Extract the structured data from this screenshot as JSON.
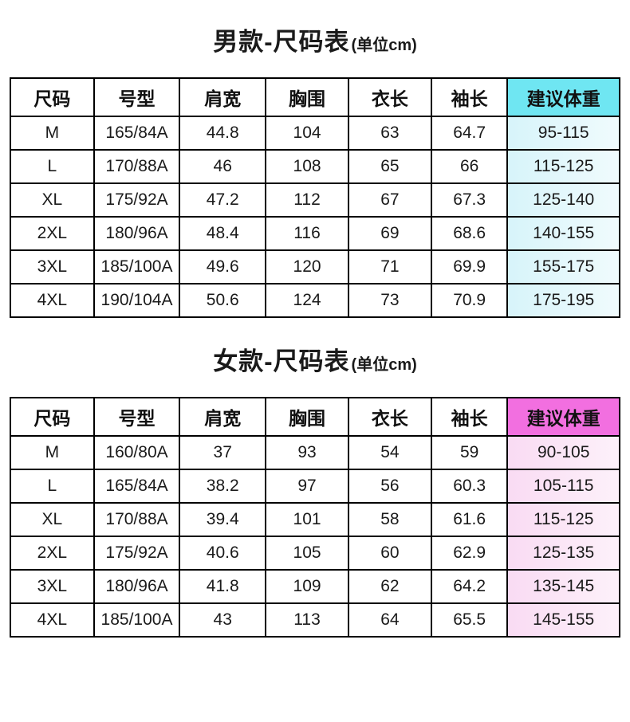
{
  "page": {
    "background": "#ffffff"
  },
  "tables": [
    {
      "id": "mens",
      "title": "男款-尺码表",
      "title_suffix": "(单位cm)",
      "headers": [
        "尺码",
        "号型",
        "肩宽",
        "胸围",
        "衣长",
        "袖长",
        "建议体重"
      ],
      "accent_color": "#6FE6F2",
      "tint_color": "#D7F4FA",
      "tint_light_color": "#F0FBFD",
      "rows": [
        [
          "M",
          "165/84A",
          "44.8",
          "104",
          "63",
          "64.7",
          "95-115"
        ],
        [
          "L",
          "170/88A",
          "46",
          "108",
          "65",
          "66",
          "115-125"
        ],
        [
          "XL",
          "175/92A",
          "47.2",
          "112",
          "67",
          "67.3",
          "125-140"
        ],
        [
          "2XL",
          "180/96A",
          "48.4",
          "116",
          "69",
          "68.6",
          "140-155"
        ],
        [
          "3XL",
          "185/100A",
          "49.6",
          "120",
          "71",
          "69.9",
          "155-175"
        ],
        [
          "4XL",
          "190/104A",
          "50.6",
          "124",
          "73",
          "70.9",
          "175-195"
        ]
      ]
    },
    {
      "id": "womens",
      "title": "女款-尺码表",
      "title_suffix": "(单位cm)",
      "headers": [
        "尺码",
        "号型",
        "肩宽",
        "胸围",
        "衣长",
        "袖长",
        "建议体重"
      ],
      "accent_color": "#F26FE0",
      "tint_color": "#F9DBF3",
      "tint_light_color": "#FDF1FA",
      "rows": [
        [
          "M",
          "160/80A",
          "37",
          "93",
          "54",
          "59",
          "90-105"
        ],
        [
          "L",
          "165/84A",
          "38.2",
          "97",
          "56",
          "60.3",
          "105-115"
        ],
        [
          "XL",
          "170/88A",
          "39.4",
          "101",
          "58",
          "61.6",
          "115-125"
        ],
        [
          "2XL",
          "175/92A",
          "40.6",
          "105",
          "60",
          "62.9",
          "125-135"
        ],
        [
          "3XL",
          "180/96A",
          "41.8",
          "109",
          "62",
          "64.2",
          "135-145"
        ],
        [
          "4XL",
          "185/100A",
          "43",
          "113",
          "64",
          "65.5",
          "145-155"
        ]
      ]
    }
  ]
}
